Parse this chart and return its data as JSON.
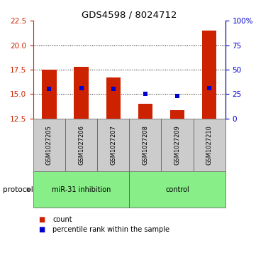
{
  "title": "GDS4598 / 8024712",
  "samples": [
    "GSM1027205",
    "GSM1027206",
    "GSM1027207",
    "GSM1027208",
    "GSM1027209",
    "GSM1027210"
  ],
  "bar_values": [
    17.5,
    17.8,
    16.7,
    14.0,
    13.35,
    21.5
  ],
  "bar_bottom": 12.5,
  "percentile_values": [
    15.55,
    15.6,
    15.55,
    15.0,
    14.83,
    15.65
  ],
  "bar_color": "#cc2200",
  "percentile_color": "#0000cc",
  "ylim_left": [
    12.5,
    22.5
  ],
  "yticks_left": [
    12.5,
    15.0,
    17.5,
    20.0,
    22.5
  ],
  "ylim_right": [
    0,
    100
  ],
  "yticks_right": [
    0,
    25,
    50,
    75,
    100
  ],
  "ytick_labels_right": [
    "0",
    "25",
    "50",
    "75",
    "100%"
  ],
  "bar_width": 0.45,
  "dotted_yticks": [
    15.0,
    17.5,
    20.0
  ],
  "legend_count_label": "count",
  "legend_percentile_label": "percentile rank within the sample",
  "green_color": "#88ee88",
  "grey_color": "#cccccc",
  "group1_label": "miR-31 inhibition",
  "group2_label": "control",
  "protocol_label": "protocol"
}
